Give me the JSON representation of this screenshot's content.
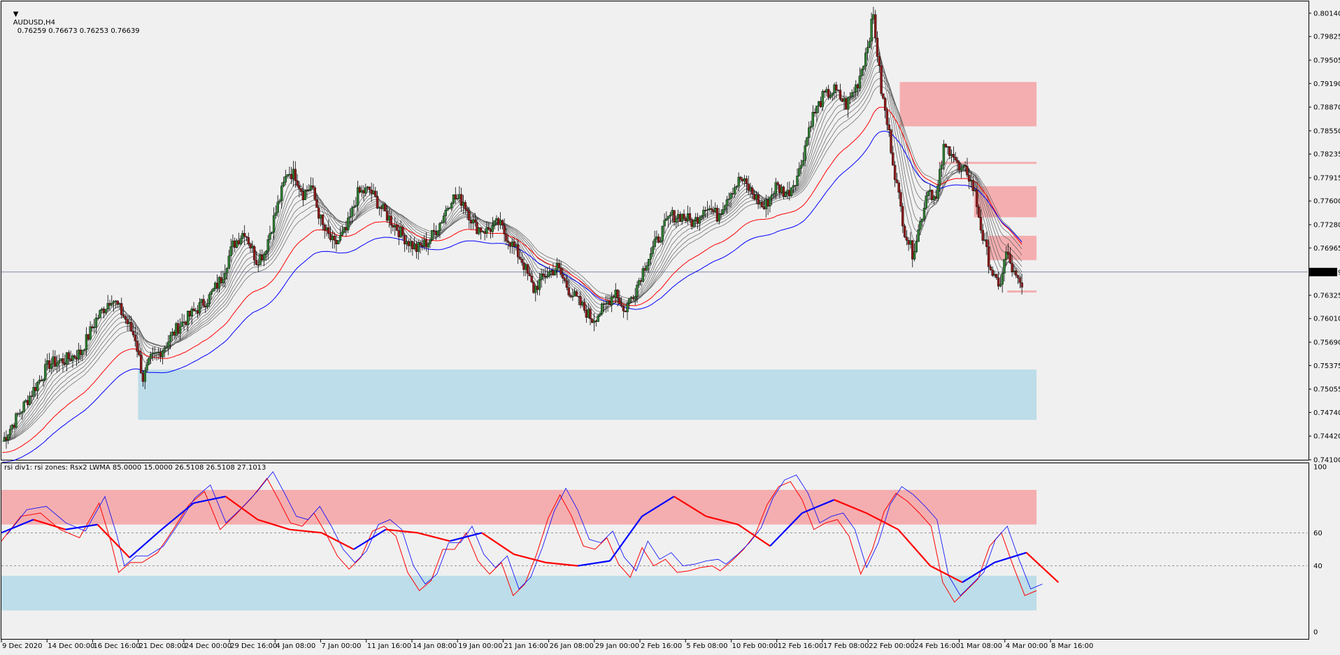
{
  "header": {
    "symbol": "AUDUSD,H4",
    "ohlc": "0.76259 0.76673 0.76253 0.76639"
  },
  "current_price_label": "0.76639",
  "indicator_header": "rsi div1: rsi zones: Rsx2 LWMA 85.0000 15.0000 26.5108 26.5108 27.1013",
  "colors": {
    "background": "#f0f0f0",
    "bull_candle": "#2e7d32",
    "bear_candle": "#8b1a1a",
    "supply_zone": "#f4aeb0",
    "demand_zone": "#bcdde9",
    "ema_red": "#ff0000",
    "ema_blue": "#0000ff",
    "ribbon": "#606060"
  },
  "chart_data": [
    {
      "type": "candlestick",
      "title": "AUDUSD,H4",
      "ylim": [
        0.741,
        0.803
      ],
      "x_tick_labels": [
        "9 Dec 2020",
        "14 Dec 00:00",
        "16 Dec 16:00",
        "21 Dec 08:00",
        "24 Dec 00:00",
        "29 Dec 16:00",
        "4 Jan 08:00",
        "7 Jan 00:00",
        "11 Jan 16:00",
        "14 Jan 08:00",
        "19 Jan 00:00",
        "21 Jan 16:00",
        "26 Jan 08:00",
        "29 Jan 00:00",
        "2 Feb 16:00",
        "5 Feb 08:00",
        "10 Feb 00:00",
        "12 Feb 16:00",
        "17 Feb 08:00",
        "22 Feb 00:00",
        "24 Feb 16:00",
        "1 Mar 08:00",
        "4 Mar 00:00",
        "8 Mar 16:00"
      ],
      "y_tick_labels": [
        "0.80140",
        "0.79825",
        "0.79505",
        "0.79190",
        "0.78870",
        "0.78550",
        "0.78235",
        "0.77915",
        "0.77600",
        "0.77280",
        "0.76965",
        "0.76639",
        "0.76325",
        "0.76010",
        "0.75690",
        "0.75375",
        "0.75055",
        "0.74740",
        "0.74420",
        "0.74100"
      ],
      "y_tick_values": [
        0.8014,
        0.79825,
        0.79505,
        0.7919,
        0.7887,
        0.7855,
        0.78235,
        0.77915,
        0.776,
        0.7728,
        0.76965,
        0.76639,
        0.76325,
        0.7601,
        0.7569,
        0.75375,
        0.75055,
        0.7474,
        0.7442,
        0.741
      ],
      "current_price": 0.76639,
      "approx_close_path": [
        [
          0,
          0.7435
        ],
        [
          8,
          0.747
        ],
        [
          16,
          0.7505
        ],
        [
          24,
          0.754
        ],
        [
          32,
          0.7545
        ],
        [
          40,
          0.7555
        ],
        [
          48,
          0.76
        ],
        [
          56,
          0.763
        ],
        [
          62,
          0.7605
        ],
        [
          68,
          0.7575
        ],
        [
          72,
          0.752
        ],
        [
          76,
          0.7545
        ],
        [
          82,
          0.756
        ],
        [
          90,
          0.759
        ],
        [
          98,
          0.761
        ],
        [
          106,
          0.763
        ],
        [
          112,
          0.7655
        ],
        [
          118,
          0.77
        ],
        [
          124,
          0.772
        ],
        [
          130,
          0.768
        ],
        [
          134,
          0.769
        ],
        [
          140,
          0.7745
        ],
        [
          146,
          0.78
        ],
        [
          150,
          0.7795
        ],
        [
          154,
          0.777
        ],
        [
          158,
          0.778
        ],
        [
          164,
          0.7725
        ],
        [
          170,
          0.77
        ],
        [
          176,
          0.772
        ],
        [
          182,
          0.777
        ],
        [
          188,
          0.7775
        ],
        [
          194,
          0.775
        ],
        [
          200,
          0.773
        ],
        [
          206,
          0.771
        ],
        [
          212,
          0.7695
        ],
        [
          218,
          0.7705
        ],
        [
          224,
          0.773
        ],
        [
          230,
          0.7765
        ],
        [
          236,
          0.776
        ],
        [
          242,
          0.7725
        ],
        [
          248,
          0.772
        ],
        [
          254,
          0.773
        ],
        [
          260,
          0.7705
        ],
        [
          266,
          0.768
        ],
        [
          272,
          0.764
        ],
        [
          278,
          0.766
        ],
        [
          284,
          0.767
        ],
        [
          290,
          0.764
        ],
        [
          296,
          0.762
        ],
        [
          302,
          0.76
        ],
        [
          308,
          0.7615
        ],
        [
          314,
          0.764
        ],
        [
          318,
          0.761
        ],
        [
          324,
          0.764
        ],
        [
          330,
          0.768
        ],
        [
          336,
          0.771
        ],
        [
          342,
          0.774
        ],
        [
          348,
          0.774
        ],
        [
          354,
          0.773
        ],
        [
          360,
          0.7755
        ],
        [
          366,
          0.774
        ],
        [
          372,
          0.777
        ],
        [
          378,
          0.779
        ],
        [
          384,
          0.777
        ],
        [
          390,
          0.775
        ],
        [
          396,
          0.778
        ],
        [
          402,
          0.777
        ],
        [
          408,
          0.78
        ],
        [
          414,
          0.787
        ],
        [
          420,
          0.79
        ],
        [
          426,
          0.791
        ],
        [
          432,
          0.789
        ],
        [
          438,
          0.792
        ],
        [
          442,
          0.796
        ],
        [
          446,
          0.801
        ],
        [
          450,
          0.791
        ],
        [
          454,
          0.785
        ],
        [
          458,
          0.778
        ],
        [
          462,
          0.772
        ],
        [
          466,
          0.769
        ],
        [
          470,
          0.773
        ],
        [
          474,
          0.778
        ],
        [
          478,
          0.776
        ],
        [
          482,
          0.783
        ],
        [
          486,
          0.783
        ],
        [
          490,
          0.78
        ],
        [
          494,
          0.78
        ],
        [
          498,
          0.777
        ],
        [
          502,
          0.771
        ],
        [
          506,
          0.767
        ],
        [
          510,
          0.764
        ],
        [
          514,
          0.769
        ],
        [
          518,
          0.766
        ],
        [
          522,
          0.764
        ]
      ],
      "zones": [
        {
          "kind": "supply",
          "from_bar": 460,
          "to_bar": 530,
          "top": 0.7921,
          "bottom": 0.7861
        },
        {
          "kind": "supply",
          "from_bar": 480,
          "to_bar": 530,
          "top": 0.7813,
          "bottom": 0.7811
        },
        {
          "kind": "supply",
          "from_bar": 498,
          "to_bar": 530,
          "top": 0.778,
          "bottom": 0.7738
        },
        {
          "kind": "supply",
          "from_bar": 505,
          "to_bar": 530,
          "top": 0.7713,
          "bottom": 0.768
        },
        {
          "kind": "supply",
          "from_bar": 515,
          "to_bar": 530,
          "top": 0.7639,
          "bottom": 0.7637
        },
        {
          "kind": "demand",
          "from_bar": 70,
          "to_bar": 530,
          "top": 0.7532,
          "bottom": 0.7464
        }
      ]
    },
    {
      "type": "line",
      "title": "rsi div1: rsi zones: Rsx2 LWMA 85.0000 15.0000 26.5108 26.5108 27.1013",
      "ylim": [
        0,
        100
      ],
      "y_tick_labels": [
        "100",
        "60",
        "40",
        "0"
      ],
      "y_tick_values": [
        100,
        60,
        40,
        0
      ],
      "levels": [
        60,
        40
      ],
      "zones": [
        {
          "kind": "upper",
          "top": 86,
          "bottom": 65
        },
        {
          "kind": "lower",
          "top": 34,
          "bottom": 13
        }
      ],
      "series": [
        {
          "name": "",
          "color": "#ff0000",
          "width": 1,
          "values": [
            [
              0,
              55
            ],
            [
              10,
              70
            ],
            [
              20,
              72
            ],
            [
              30,
              62
            ],
            [
              40,
              57
            ],
            [
              50,
              78
            ],
            [
              56,
              55
            ],
            [
              60,
              36
            ],
            [
              66,
              42
            ],
            [
              72,
              42
            ],
            [
              80,
              48
            ],
            [
              88,
              62
            ],
            [
              96,
              77
            ],
            [
              104,
              85
            ],
            [
              112,
              62
            ],
            [
              120,
              71
            ],
            [
              128,
              81
            ],
            [
              136,
              93
            ],
            [
              142,
              80
            ],
            [
              148,
              66
            ],
            [
              154,
              64
            ],
            [
              160,
              72
            ],
            [
              166,
              60
            ],
            [
              172,
              46
            ],
            [
              178,
              38
            ],
            [
              184,
              45
            ],
            [
              190,
              61
            ],
            [
              196,
              64
            ],
            [
              202,
              58
            ],
            [
              208,
              36
            ],
            [
              214,
              25
            ],
            [
              220,
              31
            ],
            [
              226,
              50
            ],
            [
              232,
              50
            ],
            [
              238,
              60
            ],
            [
              244,
              43
            ],
            [
              250,
              35
            ],
            [
              256,
              42
            ],
            [
              262,
              22
            ],
            [
              268,
              29
            ],
            [
              274,
              47
            ],
            [
              280,
              69
            ],
            [
              286,
              83
            ],
            [
              292,
              70
            ],
            [
              298,
              52
            ],
            [
              304,
              50
            ],
            [
              310,
              57
            ],
            [
              316,
              41
            ],
            [
              322,
              33
            ],
            [
              328,
              51
            ],
            [
              334,
              40
            ],
            [
              340,
              44
            ],
            [
              346,
              36
            ],
            [
              352,
              37
            ],
            [
              358,
              39
            ],
            [
              364,
              40
            ],
            [
              368,
              37
            ],
            [
              374,
              43
            ],
            [
              380,
              50
            ],
            [
              386,
              59
            ],
            [
              392,
              77
            ],
            [
              398,
              88
            ],
            [
              404,
              91
            ],
            [
              410,
              80
            ],
            [
              416,
              62
            ],
            [
              422,
              66
            ],
            [
              428,
              68
            ],
            [
              434,
              58
            ],
            [
              440,
              35
            ],
            [
              446,
              50
            ],
            [
              452,
              73
            ],
            [
              458,
              84
            ],
            [
              464,
              79
            ],
            [
              470,
              72
            ],
            [
              476,
              64
            ],
            [
              482,
              30
            ],
            [
              488,
              18
            ],
            [
              494,
              25
            ],
            [
              500,
              32
            ],
            [
              506,
              52
            ],
            [
              512,
              60
            ],
            [
              518,
              40
            ],
            [
              524,
              22
            ],
            [
              530,
              25
            ]
          ]
        },
        {
          "name": "",
          "color": "#ff0000",
          "width": 2,
          "values": [
            [
              0,
              60
            ],
            [
              20,
              68
            ],
            [
              40,
              62
            ],
            [
              60,
              65
            ],
            [
              80,
              45
            ],
            [
              100,
              62
            ],
            [
              120,
              78
            ],
            [
              140,
              82
            ],
            [
              160,
              68
            ],
            [
              180,
              62
            ],
            [
              200,
              60
            ],
            [
              220,
              50
            ],
            [
              240,
              62
            ],
            [
              260,
              60
            ],
            [
              280,
              55
            ],
            [
              300,
              60
            ],
            [
              320,
              47
            ],
            [
              340,
              42
            ],
            [
              360,
              40
            ],
            [
              380,
              43
            ],
            [
              400,
              70
            ],
            [
              420,
              82
            ],
            [
              440,
              70
            ],
            [
              460,
              65
            ],
            [
              480,
              52
            ],
            [
              500,
              72
            ],
            [
              520,
              80
            ],
            [
              540,
              72
            ],
            [
              560,
              62
            ],
            [
              580,
              40
            ],
            [
              600,
              30
            ],
            [
              620,
              42
            ],
            [
              640,
              48
            ],
            [
              660,
              30
            ]
          ]
        }
      ]
    }
  ]
}
